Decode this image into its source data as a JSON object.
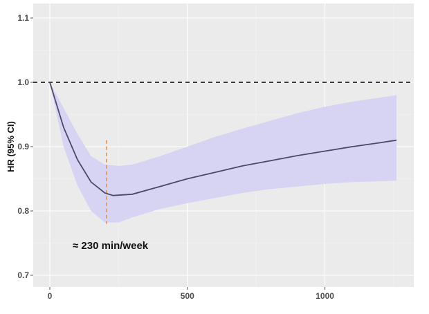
{
  "chart_data": {
    "type": "line",
    "title": "",
    "xlabel": "",
    "ylabel": "HR (95% CI)",
    "xlim": [
      -60,
      1320
    ],
    "ylim": [
      0.685,
      1.122
    ],
    "xticks": [
      0,
      500,
      1000
    ],
    "xtick_labels": [
      "0",
      "500",
      "1000"
    ],
    "yticks": [
      0.7,
      0.8,
      0.9,
      1.0,
      1.1
    ],
    "ytick_labels": [
      "0.7",
      "0.8",
      "0.9",
      "1.0",
      "1.1"
    ],
    "grid": true,
    "reference_line": {
      "y": 1.0,
      "style": "dashed",
      "color": "#000000"
    },
    "marker_line": {
      "x": 206,
      "y_range": [
        0.78,
        0.91
      ],
      "style": "dashed",
      "color": "#f28c3c"
    },
    "annotation": "≈ 230 min/week",
    "series": [
      {
        "name": "HR",
        "color": "#4b4868",
        "x": [
          0,
          50,
          100,
          150,
          200,
          230,
          300,
          400,
          500,
          600,
          700,
          800,
          900,
          1000,
          1100,
          1200,
          1260
        ],
        "y": [
          1.0,
          0.93,
          0.88,
          0.845,
          0.828,
          0.824,
          0.826,
          0.838,
          0.85,
          0.86,
          0.87,
          0.878,
          0.886,
          0.893,
          0.9,
          0.906,
          0.91
        ]
      },
      {
        "name": "95% CI upper",
        "color": "#d6d4f2",
        "x": [
          0,
          50,
          100,
          150,
          200,
          250,
          300,
          400,
          500,
          600,
          700,
          800,
          900,
          1000,
          1100,
          1260
        ],
        "y": [
          1.0,
          0.96,
          0.92,
          0.885,
          0.872,
          0.87,
          0.872,
          0.885,
          0.9,
          0.915,
          0.928,
          0.94,
          0.952,
          0.962,
          0.97,
          0.98
        ]
      },
      {
        "name": "95% CI lower",
        "color": "#d6d4f2",
        "x": [
          0,
          50,
          100,
          150,
          200,
          250,
          300,
          400,
          500,
          600,
          700,
          800,
          900,
          1000,
          1100,
          1260
        ],
        "y": [
          1.0,
          0.9,
          0.84,
          0.8,
          0.782,
          0.782,
          0.79,
          0.803,
          0.812,
          0.82,
          0.828,
          0.834,
          0.838,
          0.842,
          0.845,
          0.847
        ]
      }
    ]
  }
}
